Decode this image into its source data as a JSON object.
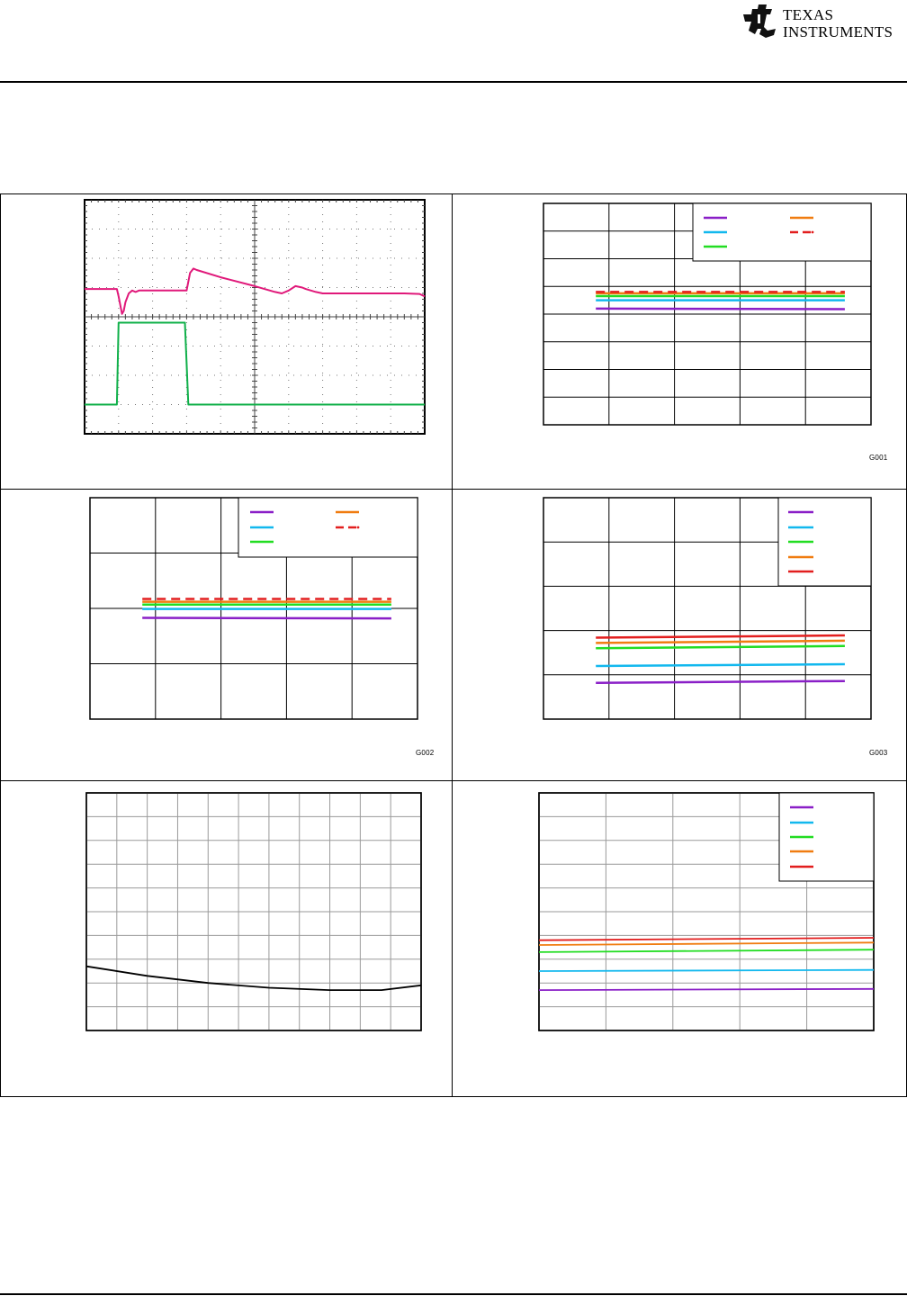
{
  "header": {
    "logo_line1": "TEXAS",
    "logo_line2": "INSTRUMENTS"
  },
  "colors": {
    "magenta": "#e0197a",
    "green": "#10b04a",
    "purple": "#8a1fc7",
    "cyan": "#12b8ee",
    "lime": "#22dd22",
    "orange": "#f07c10",
    "red": "#e21e1e",
    "grid": "#9a9a9a",
    "black": "#000000"
  },
  "chart_data": [
    {
      "type": "line",
      "id": "scope-trace",
      "xlim": [
        0,
        10
      ],
      "ylim": [
        0,
        8
      ],
      "grid": true,
      "series": [
        {
          "color": "magenta",
          "x": [
            0,
            0.95,
            1.0,
            1.1,
            1.15,
            1.2,
            1.3,
            1.4,
            1.5,
            1.6,
            1.75,
            2.0,
            3.0,
            3.05,
            3.1,
            3.2,
            3.3,
            4.0,
            5.0,
            5.6,
            5.8,
            6.0,
            6.2,
            6.4,
            6.5,
            6.8,
            7.0,
            8.5,
            9.4,
            9.85,
            10.0
          ],
          "y": [
            4.95,
            4.95,
            4.7,
            4.1,
            4.2,
            4.5,
            4.8,
            4.9,
            4.85,
            4.9,
            4.9,
            4.9,
            4.9,
            5.2,
            5.5,
            5.65,
            5.6,
            5.35,
            5.05,
            4.85,
            4.8,
            4.9,
            5.05,
            5.0,
            4.95,
            4.85,
            4.8,
            4.8,
            4.8,
            4.78,
            4.7
          ]
        },
        {
          "color": "green",
          "x": [
            0,
            0.95,
            1.0,
            2.95,
            3.05,
            10.0
          ],
          "y": [
            1.0,
            1.0,
            3.8,
            3.8,
            1.0,
            1.0
          ]
        }
      ]
    },
    {
      "type": "line",
      "id": "g001",
      "code": "G001",
      "xlim": [
        0,
        5
      ],
      "ylim": [
        0,
        8
      ],
      "grid": true,
      "legend": "top-right",
      "series": [
        {
          "color": "purple",
          "style": "solid",
          "x": [
            0.8,
            4.6
          ],
          "y": [
            4.2,
            4.18
          ]
        },
        {
          "color": "cyan",
          "style": "solid",
          "x": [
            0.8,
            4.6
          ],
          "y": [
            4.5,
            4.5
          ]
        },
        {
          "color": "lime",
          "style": "solid",
          "x": [
            0.8,
            4.6
          ],
          "y": [
            4.65,
            4.65
          ]
        },
        {
          "color": "orange",
          "style": "solid",
          "x": [
            0.8,
            4.6
          ],
          "y": [
            4.75,
            4.75
          ]
        },
        {
          "color": "red",
          "style": "dashed",
          "x": [
            0.8,
            4.6
          ],
          "y": [
            4.8,
            4.8
          ]
        }
      ]
    },
    {
      "type": "line",
      "id": "g002",
      "code": "G002",
      "xlim": [
        0,
        5
      ],
      "ylim": [
        0,
        4
      ],
      "grid": true,
      "legend": "top-right",
      "series": [
        {
          "color": "purple",
          "style": "solid",
          "x": [
            0.8,
            4.6
          ],
          "y": [
            1.83,
            1.82
          ]
        },
        {
          "color": "cyan",
          "style": "solid",
          "x": [
            0.8,
            4.6
          ],
          "y": [
            1.99,
            1.99
          ]
        },
        {
          "color": "lime",
          "style": "solid",
          "x": [
            0.8,
            4.6
          ],
          "y": [
            2.07,
            2.07
          ]
        },
        {
          "color": "orange",
          "style": "solid",
          "x": [
            0.8,
            4.6
          ],
          "y": [
            2.12,
            2.12
          ]
        },
        {
          "color": "red",
          "style": "dashed",
          "x": [
            0.8,
            4.6
          ],
          "y": [
            2.17,
            2.17
          ]
        }
      ]
    },
    {
      "type": "line",
      "id": "g003",
      "code": "G003",
      "xlim": [
        0,
        5
      ],
      "ylim": [
        0,
        5
      ],
      "grid": true,
      "legend": "top-right",
      "series": [
        {
          "color": "purple",
          "style": "solid",
          "x": [
            0.8,
            4.6
          ],
          "y": [
            0.82,
            0.86
          ]
        },
        {
          "color": "cyan",
          "style": "solid",
          "x": [
            0.8,
            4.6
          ],
          "y": [
            1.2,
            1.24
          ]
        },
        {
          "color": "lime",
          "style": "solid",
          "x": [
            0.8,
            4.6
          ],
          "y": [
            1.6,
            1.65
          ]
        },
        {
          "color": "orange",
          "style": "solid",
          "x": [
            0.8,
            4.6
          ],
          "y": [
            1.72,
            1.77
          ]
        },
        {
          "color": "red",
          "style": "solid",
          "x": [
            0.8,
            4.6
          ],
          "y": [
            1.84,
            1.89
          ]
        }
      ]
    },
    {
      "type": "line",
      "id": "bottom-left",
      "xlim": [
        0,
        11
      ],
      "ylim": [
        0,
        10
      ],
      "grid": true,
      "series": [
        {
          "color": "black",
          "style": "solid",
          "x": [
            0,
            2,
            4,
            6,
            8,
            9.7,
            11
          ],
          "y": [
            2.7,
            2.3,
            2.0,
            1.8,
            1.7,
            1.7,
            1.9
          ]
        }
      ]
    },
    {
      "type": "line",
      "id": "bottom-right",
      "xlim": [
        0,
        5
      ],
      "ylim": [
        0,
        10
      ],
      "grid": true,
      "legend": "top-right",
      "series": [
        {
          "color": "purple",
          "style": "solid",
          "x": [
            0,
            5
          ],
          "y": [
            1.7,
            1.75
          ]
        },
        {
          "color": "cyan",
          "style": "solid",
          "x": [
            0,
            5
          ],
          "y": [
            2.5,
            2.55
          ]
        },
        {
          "color": "lime",
          "style": "solid",
          "x": [
            0,
            5
          ],
          "y": [
            3.3,
            3.4
          ]
        },
        {
          "color": "orange",
          "style": "solid",
          "x": [
            0,
            5
          ],
          "y": [
            3.6,
            3.7
          ]
        },
        {
          "color": "red",
          "style": "solid",
          "x": [
            0,
            5
          ],
          "y": [
            3.8,
            3.9
          ]
        }
      ]
    }
  ]
}
